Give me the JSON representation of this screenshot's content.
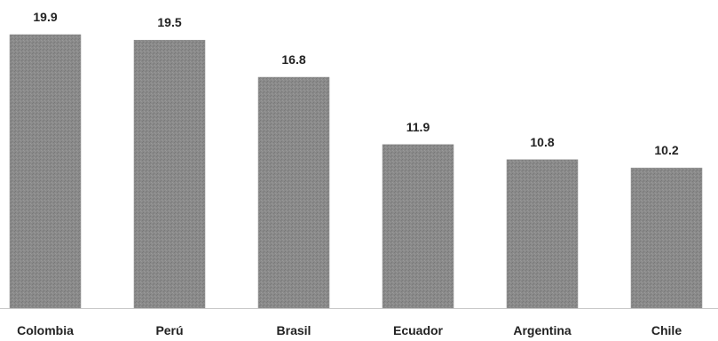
{
  "chart_data": {
    "type": "bar",
    "title": "",
    "xlabel": "",
    "ylabel": "",
    "categories": [
      "Colombia",
      "Perú",
      "Brasil",
      "Ecuador",
      "Argentina",
      "Chile"
    ],
    "values": [
      19.9,
      19.5,
      16.8,
      11.9,
      10.8,
      10.2
    ],
    "data_labels": [
      "19.9",
      "19.5",
      "16.8",
      "11.9",
      "10.8",
      "10.2"
    ],
    "ylim": [
      0,
      19.9
    ],
    "grid": false,
    "legend": "none",
    "colors": {
      "bar": "#8c8c8c",
      "baseline": "#c8c8c8",
      "text": "#222222"
    }
  }
}
